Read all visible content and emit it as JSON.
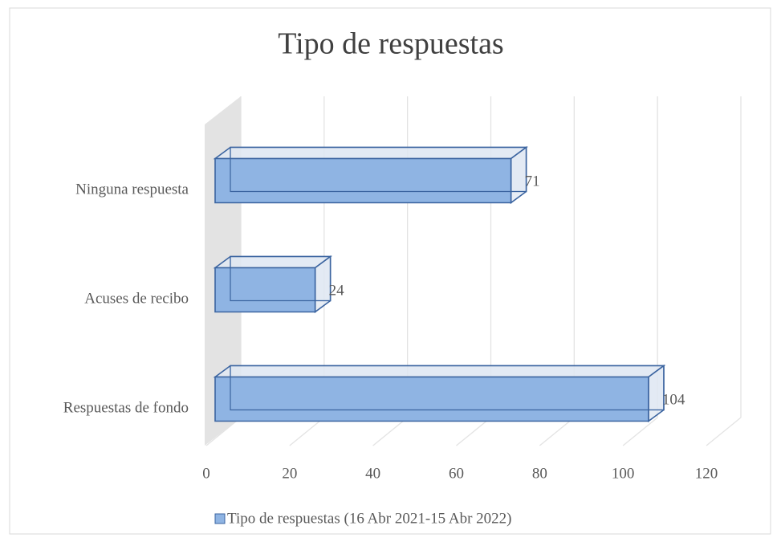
{
  "chart_data": {
    "type": "bar3d",
    "title": "Tipo de respuestas",
    "categories": [
      "Ninguna respuesta",
      "Acuses de recibo",
      "Respuestas de fondo"
    ],
    "series": [
      {
        "name": "Tipo de respuestas (16 Abr 2021-15 Abr 2022)",
        "color": "#8fb4e3",
        "values": [
          71,
          24,
          104
        ]
      }
    ],
    "xlim": [
      0,
      120
    ],
    "xticks": [
      0,
      20,
      40,
      60,
      80,
      100,
      120
    ],
    "grid": true,
    "legend": "bottom"
  }
}
